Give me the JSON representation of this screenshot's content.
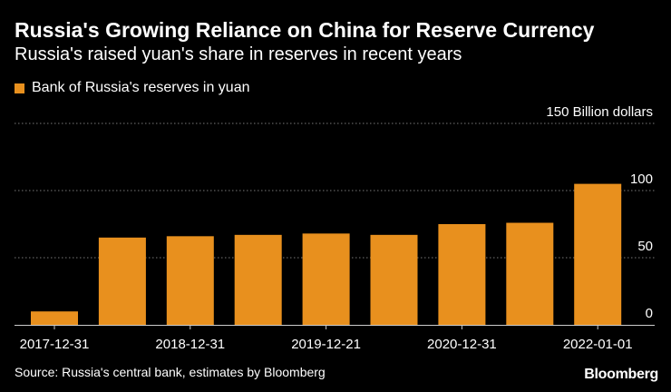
{
  "chart_data": {
    "type": "bar",
    "title": "Russia's Growing Reliance on China for Reserve Currency",
    "subtitle": "Russia's raised yuan's share in reserves in recent years",
    "series": [
      {
        "name": "Bank of Russia's reserves in yuan",
        "values": [
          10,
          65,
          66,
          67,
          68,
          67,
          75,
          76,
          105
        ]
      }
    ],
    "categories": [
      "2017-12-31",
      "",
      "2018-12-31",
      "",
      "2019-12-21",
      "",
      "2020-12-31",
      "",
      "2022-01-01"
    ],
    "y_unit_label": "150 Billion dollars",
    "y_ticks": [
      0,
      50,
      100,
      150
    ],
    "y_tick_labels": [
      "0",
      "50",
      "100",
      "150 Billion dollars"
    ],
    "x_tick_labels": [
      "2017-12-31",
      "2018-12-31",
      "2019-12-21",
      "2020-12-31",
      "2022-01-01"
    ],
    "ylim": [
      0,
      150
    ],
    "grid": true,
    "legend_position": "top-left",
    "colors": {
      "bar": "#e8901e",
      "grid": "#777777",
      "background": "#000000"
    }
  },
  "source": "Source: Russia's central bank, estimates by Bloomberg",
  "brand": "Bloomberg"
}
